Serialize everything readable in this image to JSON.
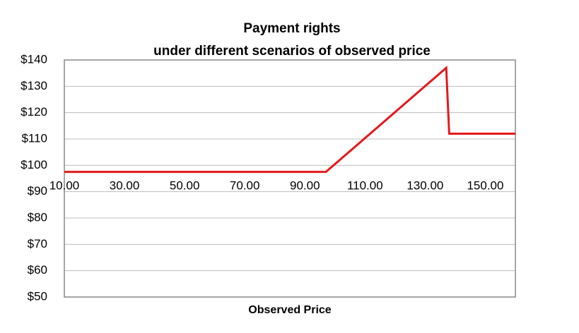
{
  "chart_data": {
    "type": "line",
    "title": "Payment rights",
    "subtitle": "under different scenarios of observed price",
    "x_label": "Observed Price",
    "x": [
      10,
      97,
      137,
      138,
      160
    ],
    "values": [
      97.5,
      97.5,
      137,
      112,
      112
    ],
    "color": "#e3191c",
    "xlim": [
      10,
      160
    ],
    "xticks": [
      {
        "value": 10,
        "label": "10.00"
      },
      {
        "value": 30,
        "label": "30.00"
      },
      {
        "value": 50,
        "label": "50.00"
      },
      {
        "value": 70,
        "label": "70.00"
      },
      {
        "value": 90,
        "label": "90.00"
      },
      {
        "value": 110,
        "label": "110.00"
      },
      {
        "value": 130,
        "label": "130.00"
      },
      {
        "value": 150,
        "label": "150.00"
      }
    ],
    "ylim": [
      50,
      140
    ],
    "yticks": [
      {
        "value": 50,
        "label": "$50"
      },
      {
        "value": 60,
        "label": "$60"
      },
      {
        "value": 70,
        "label": "$70"
      },
      {
        "value": 80,
        "label": "$80"
      },
      {
        "value": 90,
        "label": "$90"
      },
      {
        "value": 100,
        "label": "$100"
      },
      {
        "value": 110,
        "label": "$110"
      },
      {
        "value": 120,
        "label": "$120"
      },
      {
        "value": 130,
        "label": "$130"
      },
      {
        "value": 140,
        "label": "$140"
      }
    ],
    "grid": true
  }
}
